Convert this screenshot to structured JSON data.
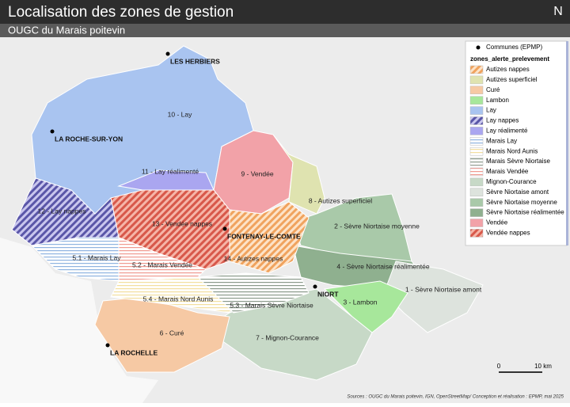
{
  "header": {
    "title": "Localisation des zones de gestion",
    "subtitle": "OUGC du Marais poitevin",
    "north": "N"
  },
  "legend": {
    "communes": "Communes (EPMP)",
    "layer_title": "zones_alerte_prelevement",
    "items": [
      "Autizes nappes",
      "Autizes superficiel",
      "Curé",
      "Lambon",
      "Lay",
      "Lay nappes",
      "Lay réalimenté",
      "Marais Lay",
      "Marais Nord Aunis",
      "Marais Sèvre Niortaise",
      "Marais Vendée",
      "Mignon-Courance",
      "Sèvre Niortaise amont",
      "Sèvre Niortaise moyenne",
      "Sèvre Niortaise réalimentée",
      "Vendée",
      "Vendée nappes"
    ]
  },
  "zones": [
    "10 - Lay",
    "11 - Lay réalimenté",
    "9 - Vendée",
    "8 - Autizes superficiel",
    "2 - Sèvre Niortaise moyenne",
    "12 - Lay nappes",
    "13 - Vendée nappes",
    "14 - Autizes nappes",
    "5.1 - Marais Lay",
    "5.2 - Marais Vendée",
    "4 - Sèvre Niortaise réalimentée",
    "1 - Sèvre Niortaise amont",
    "5.4 - Marais Nord Aunis",
    "5.3 - Marais Sèvre Niortaise",
    "3 - Lambon",
    "6 - Curé",
    "7 - Mignon-Courance"
  ],
  "cities": [
    "LES HERBIERS",
    "LA ROCHE-SUR-YON",
    "FONTENAY-LE-COMTE",
    "NIORT",
    "LA ROCHELLE"
  ],
  "scale": {
    "start": "0",
    "end": "10 km"
  },
  "sources": "Sources : OUGC du Marais poitevin, IGN, OpenStreetMap/ Conception et réalisation : EPMP, mai 2025"
}
